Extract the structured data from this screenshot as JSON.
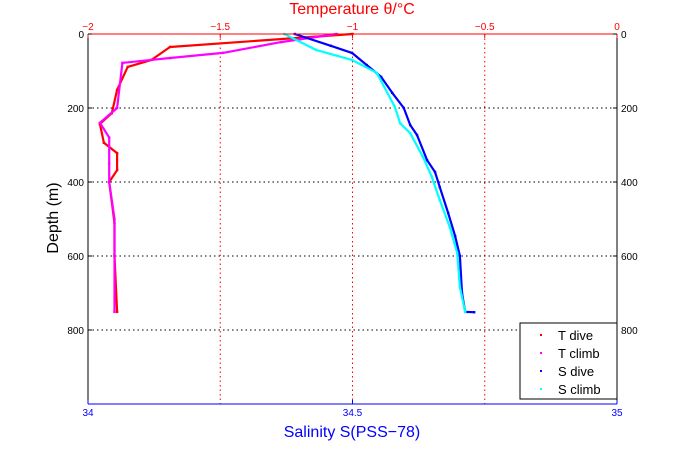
{
  "chart_data": {
    "type": "scatter",
    "top_title": "Temperature θ/°C",
    "xlabel": "Salinity S(PSS−78)",
    "ylabel": "Depth (m)",
    "top_axis": {
      "range": [
        -2,
        0
      ],
      "ticks": [
        -2,
        -1.5,
        -1,
        -0.5,
        0
      ],
      "tick_labels": [
        "−2",
        "−1.5",
        "−1",
        "−0.5",
        "0"
      ],
      "color": "#ff0000",
      "grid": true
    },
    "bottom_axis": {
      "range": [
        34,
        35
      ],
      "ticks": [
        34,
        34.5,
        35
      ],
      "tick_labels": [
        "34",
        "34.5",
        "35"
      ],
      "color": "#0000ff"
    },
    "y_axis": {
      "range": [
        0,
        1000
      ],
      "reversed": true,
      "ticks": [
        0,
        200,
        400,
        600,
        800
      ],
      "tick_labels": [
        "0",
        "200",
        "400",
        "600",
        "800"
      ],
      "grid": true
    },
    "legend": {
      "placement": "bottom-right"
    },
    "series": [
      {
        "name": "T dive",
        "axis": "top",
        "color": "#ff0000",
        "x": [
          -1.0,
          -1.69,
          -1.76,
          -1.85,
          -1.89,
          -1.91,
          -1.955,
          -1.94,
          -1.89,
          -1.89,
          -1.92,
          -1.9,
          -1.9,
          -1.89
        ],
        "depth": [
          0,
          35,
          70,
          89,
          151,
          214,
          243,
          294,
          322,
          368,
          400,
          511,
          600,
          751
        ]
      },
      {
        "name": "T climb",
        "axis": "top",
        "color": "#ff00ff",
        "x": [
          -1.06,
          -1.27,
          -1.49,
          -1.69,
          -1.87,
          -1.89,
          -1.955,
          -1.92,
          -1.92,
          -1.92,
          -1.9,
          -1.9
        ],
        "depth": [
          0,
          22,
          51,
          65,
          78,
          200,
          240,
          280,
          350,
          400,
          500,
          751
        ]
      },
      {
        "name": "S dive",
        "axis": "bottom",
        "color": "#0000ff",
        "x": [
          34.391,
          34.459,
          34.499,
          34.527,
          34.554,
          34.575,
          34.597,
          34.609,
          34.622,
          34.641,
          34.656,
          34.665,
          34.681,
          34.694,
          34.703,
          34.707,
          34.713,
          34.73
        ],
        "depth": [
          0,
          32,
          51,
          84,
          116,
          159,
          200,
          246,
          273,
          341,
          373,
          414,
          484,
          546,
          600,
          700,
          751,
          752
        ]
      },
      {
        "name": "S climb",
        "axis": "bottom",
        "color": "#00ffff",
        "x": [
          34.371,
          34.431,
          34.499,
          34.546,
          34.58,
          34.59,
          34.609,
          34.633,
          34.65,
          34.665,
          34.684,
          34.698,
          34.703,
          34.713
        ],
        "depth": [
          0,
          43,
          70,
          105,
          197,
          241,
          268,
          332,
          386,
          449,
          522,
          592,
          684,
          751
        ]
      }
    ]
  }
}
